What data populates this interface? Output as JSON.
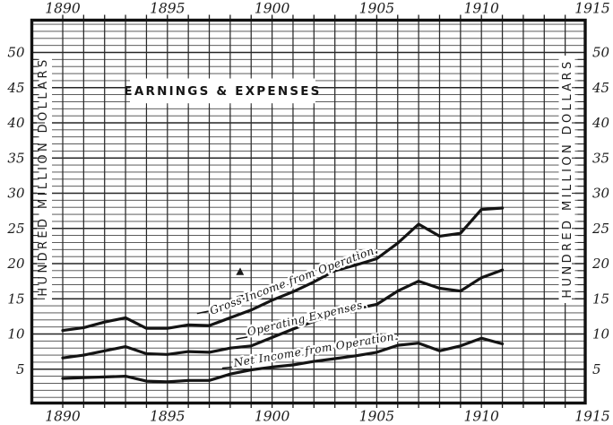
{
  "title": "EARNINGS & EXPENSES",
  "y_axis_title_left": "HUNDRED MILLION DOLLARS",
  "y_axis_title_right": "HUNDRED MILLION DOLLARS",
  "colors": {
    "ink": "#1c1c1c",
    "paper": "#ffffff",
    "grid": "#454545"
  },
  "chart_data": {
    "type": "line",
    "title": "EARNINGS & EXPENSES",
    "ylabel": "HUNDRED MILLION DOLLARS",
    "x": [
      1890,
      1891,
      1892,
      1893,
      1894,
      1895,
      1896,
      1897,
      1898,
      1899,
      1900,
      1901,
      1902,
      1903,
      1904,
      1905,
      1906,
      1907,
      1908,
      1909,
      1910,
      1911
    ],
    "series": [
      {
        "name": "Gross Income from Operation.",
        "values": [
          10.5,
          10.9,
          11.7,
          12.3,
          10.8,
          10.8,
          11.3,
          11.2,
          12.3,
          13.4,
          14.8,
          16.0,
          17.4,
          19.0,
          19.8,
          20.7,
          22.9,
          25.6,
          23.9,
          24.3,
          27.7,
          27.9
        ]
      },
      {
        "name": "Operating Expenses.",
        "values": [
          6.6,
          7.0,
          7.6,
          8.2,
          7.2,
          7.1,
          7.5,
          7.4,
          8.0,
          8.3,
          9.5,
          10.7,
          11.8,
          12.9,
          13.6,
          14.2,
          16.1,
          17.5,
          16.5,
          16.1,
          18.0,
          19.1
        ]
      },
      {
        "name": "Net Income from Operation.",
        "values": [
          3.7,
          3.8,
          3.9,
          4.0,
          3.3,
          3.2,
          3.4,
          3.4,
          4.3,
          4.9,
          5.3,
          5.6,
          6.1,
          6.5,
          6.9,
          7.4,
          8.4,
          8.7,
          7.6,
          8.3,
          9.4,
          8.6
        ]
      }
    ],
    "x_axis": {
      "range": [
        1888.4,
        1915
      ],
      "tick_years": [
        1890,
        1895,
        1900,
        1905,
        1910,
        1915
      ],
      "tick_labels": [
        "1890",
        "1895",
        "1900",
        "1905",
        "1910",
        "1915"
      ],
      "labels_shown": "top and bottom"
    },
    "y_axis": {
      "range": [
        0,
        54.8
      ],
      "tick_values": [
        5,
        10,
        15,
        20,
        25,
        30,
        35,
        40,
        45,
        50
      ],
      "tick_labels": [
        "5",
        "10",
        "15",
        "20",
        "25",
        "30",
        "35",
        "40",
        "45",
        "50"
      ],
      "unit": "hundred million dollars",
      "labels_shown": "left and right"
    },
    "grid": "ruled grid, 1 year by 1 hundred-million-dollar cells",
    "legend": "labels written along each curve"
  }
}
